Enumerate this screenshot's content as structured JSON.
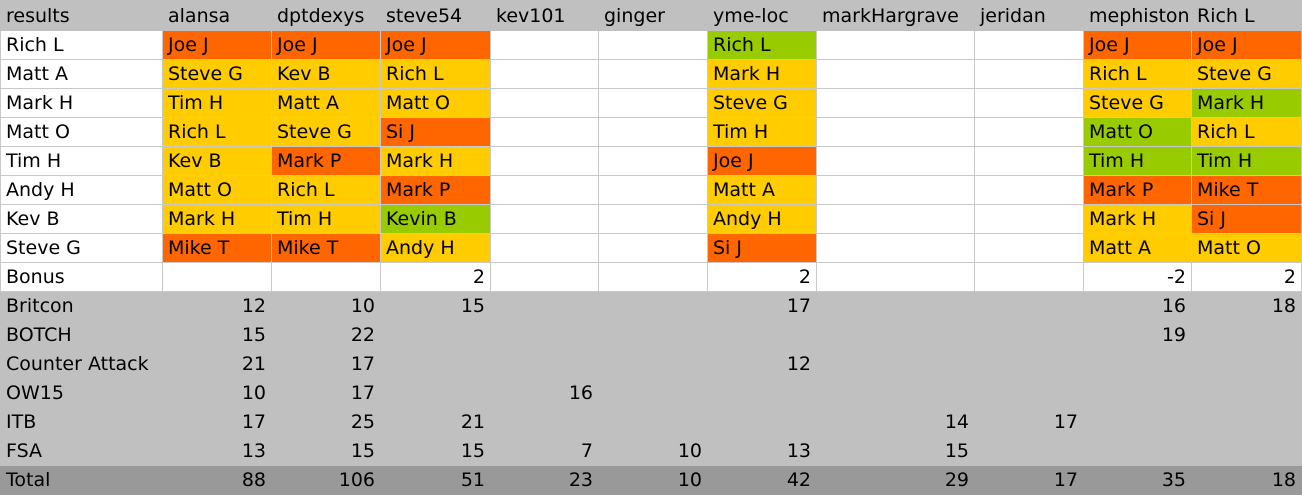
{
  "header": [
    "results",
    "alansa",
    "dptdexys",
    "steve54",
    "kev101",
    "ginger",
    "yme-loc",
    "markHargrave",
    "jeridan",
    "mephiston",
    "Rich L"
  ],
  "picks": [
    {
      "label": "Rich L",
      "cells": [
        "Joe J",
        "Joe J",
        "Joe J",
        null,
        null,
        "Rich L",
        null,
        null,
        "Joe J",
        "Joe J"
      ],
      "fills": [
        "#ff6600",
        "#ff6600",
        "#ff6600",
        null,
        null,
        "#99cc00",
        null,
        null,
        "#ff6600",
        "#ff6600"
      ]
    },
    {
      "label": "Matt A",
      "cells": [
        "Steve G",
        "Kev B",
        "Rich L",
        null,
        null,
        "Mark H",
        null,
        null,
        "Rich L",
        "Steve G"
      ],
      "fills": [
        "#ffcc00",
        "#ffcc00",
        "#ffcc00",
        null,
        null,
        "#ffcc00",
        null,
        null,
        "#ffcc00",
        "#ffcc00"
      ]
    },
    {
      "label": "Mark H",
      "cells": [
        "Tim H",
        "Matt A",
        "Matt O",
        null,
        null,
        "Steve G",
        null,
        null,
        "Steve G",
        "Mark H"
      ],
      "fills": [
        "#ffcc00",
        "#ffcc00",
        "#ffcc00",
        null,
        null,
        "#ffcc00",
        null,
        null,
        "#ffcc00",
        "#99cc00"
      ]
    },
    {
      "label": "Matt O",
      "cells": [
        "Rich L",
        "Steve G",
        "Si J",
        null,
        null,
        "Tim H",
        null,
        null,
        "Matt O",
        "Rich L"
      ],
      "fills": [
        "#ffcc00",
        "#ffcc00",
        "#ff6600",
        null,
        null,
        "#ffcc00",
        null,
        null,
        "#99cc00",
        "#ffcc00"
      ]
    },
    {
      "label": "Tim H",
      "cells": [
        "Kev B",
        "Mark P",
        "Mark H",
        null,
        null,
        "Joe J",
        null,
        null,
        "Tim H",
        "Tim H"
      ],
      "fills": [
        "#ffcc00",
        "#ff6600",
        "#ffcc00",
        null,
        null,
        "#ff6600",
        null,
        null,
        "#99cc00",
        "#99cc00"
      ]
    },
    {
      "label": "Andy H",
      "cells": [
        "Matt O",
        "Rich L",
        "Mark P",
        null,
        null,
        "Matt A",
        null,
        null,
        "Mark P",
        "Mike T"
      ],
      "fills": [
        "#ffcc00",
        "#ffcc00",
        "#ff6600",
        null,
        null,
        "#ffcc00",
        null,
        null,
        "#ff6600",
        "#ff6600"
      ]
    },
    {
      "label": "Kev B",
      "cells": [
        "Mark H",
        "Tim H",
        "Kevin B",
        null,
        null,
        "Andy H",
        null,
        null,
        "Mark H",
        "Si J"
      ],
      "fills": [
        "#ffcc00",
        "#ffcc00",
        "#99cc00",
        null,
        null,
        "#ffcc00",
        null,
        null,
        "#ffcc00",
        "#ff6600"
      ]
    },
    {
      "label": "Steve G",
      "cells": [
        "Mike T",
        "Mike T",
        "Andy H",
        null,
        null,
        "Si J",
        null,
        null,
        "Matt A",
        "Matt O"
      ],
      "fills": [
        "#ff6600",
        "#ff6600",
        "#ffcc00",
        null,
        null,
        "#ff6600",
        null,
        null,
        "#ffcc00",
        "#ffcc00"
      ]
    }
  ],
  "bonus": {
    "label": "Bonus",
    "cells": [
      null,
      null,
      2,
      null,
      null,
      2,
      null,
      null,
      -2,
      2
    ]
  },
  "events": [
    {
      "label": "Britcon",
      "cells": [
        12,
        10,
        15,
        null,
        null,
        17,
        null,
        null,
        16,
        18
      ]
    },
    {
      "label": "BOTCH",
      "cells": [
        15,
        22,
        null,
        null,
        null,
        null,
        null,
        null,
        19,
        null
      ]
    },
    {
      "label": "Counter Attack",
      "cells": [
        21,
        17,
        null,
        null,
        null,
        12,
        null,
        null,
        null,
        null
      ]
    },
    {
      "label": "OW15",
      "cells": [
        10,
        17,
        null,
        16,
        null,
        null,
        null,
        null,
        null,
        null
      ]
    },
    {
      "label": "ITB",
      "cells": [
        17,
        25,
        21,
        null,
        null,
        null,
        14,
        17,
        null,
        null
      ]
    },
    {
      "label": "FSA",
      "cells": [
        13,
        15,
        15,
        7,
        10,
        13,
        15,
        null,
        null,
        null
      ]
    }
  ],
  "total": {
    "label": "Total",
    "cells": [
      88,
      106,
      51,
      23,
      10,
      42,
      29,
      17,
      35,
      18
    ]
  }
}
